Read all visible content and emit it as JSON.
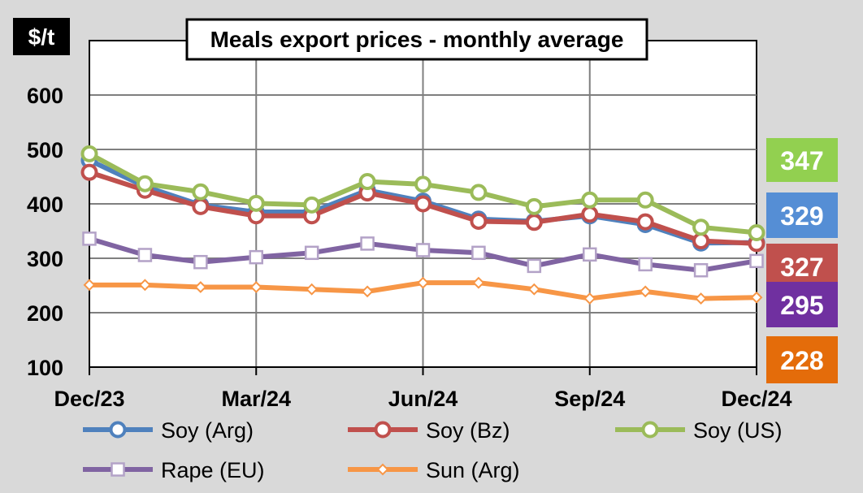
{
  "chart_data": {
    "type": "line",
    "title": "Meals export prices - monthly average",
    "unit_label": "$/t",
    "x": [
      "Dec/23",
      "Jan/24",
      "Feb/24",
      "Mar/24",
      "Apr/24",
      "May/24",
      "Jun/24",
      "Jul/24",
      "Aug/24",
      "Sep/24",
      "Oct/24",
      "Nov/24",
      "Dec/24"
    ],
    "x_tick_labels": [
      "Dec/23",
      "Mar/24",
      "Jun/24",
      "Sep/24",
      "Dec/24"
    ],
    "y_ticks": [
      100,
      200,
      300,
      400,
      500,
      600
    ],
    "ylim": [
      100,
      700
    ],
    "grid": true,
    "legend_position": "bottom",
    "series": [
      {
        "name": "Soy (Arg)",
        "color": "#4f81bd",
        "marker": "circle",
        "values": [
          480,
          432,
          398,
          385,
          385,
          425,
          405,
          372,
          368,
          378,
          362,
          328,
          329
        ]
      },
      {
        "name": "Soy (Bz)",
        "color": "#c0504d",
        "marker": "circle",
        "values": [
          458,
          425,
          395,
          378,
          378,
          420,
          400,
          368,
          366,
          381,
          367,
          332,
          327
        ]
      },
      {
        "name": "Soy (US)",
        "color": "#9bbb59",
        "marker": "circle",
        "values": [
          492,
          437,
          422,
          401,
          398,
          441,
          436,
          421,
          395,
          407,
          407,
          357,
          347
        ]
      },
      {
        "name": "Rape (EU)",
        "color": "#8064a2",
        "marker": "square",
        "values": [
          336,
          306,
          293,
          302,
          310,
          327,
          315,
          310,
          286,
          307,
          289,
          278,
          295
        ]
      },
      {
        "name": "Sun (Arg)",
        "color": "#f79646",
        "marker": "diamond",
        "values": [
          251,
          251,
          247,
          247,
          243,
          239,
          255,
          255,
          243,
          226,
          239,
          226,
          228
        ]
      }
    ],
    "end_badges": [
      {
        "value": "347",
        "color": "#92d050"
      },
      {
        "value": "329",
        "color": "#558ed5"
      },
      {
        "value": "327",
        "color": "#c0504d"
      },
      {
        "value": "295",
        "color": "#7030a0"
      },
      {
        "value": "228",
        "color": "#e46c0a"
      }
    ]
  }
}
